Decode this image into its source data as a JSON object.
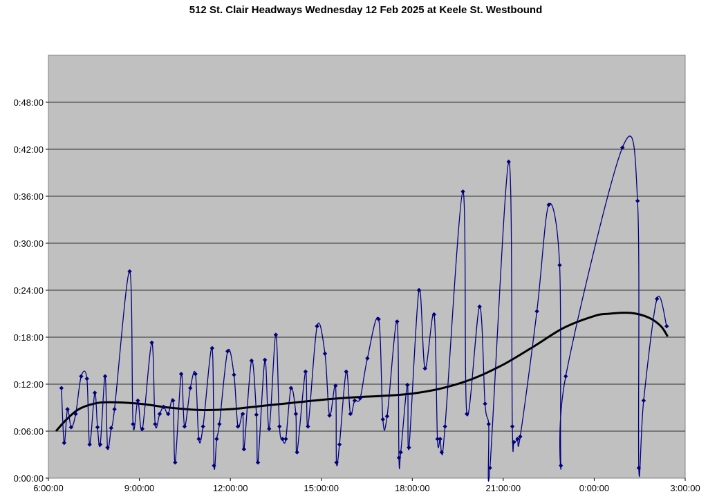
{
  "chart_data": {
    "type": "line",
    "title": "512 St. Clair Headways Wednesday 12 Feb 2025 at Keele St. Westbound",
    "xlabel": "",
    "ylabel": "",
    "x_ticks": [
      "6:00:00",
      "9:00:00",
      "12:00:00",
      "15:00:00",
      "18:00:00",
      "21:00:00",
      "0:00:00",
      "3:00:00"
    ],
    "y_ticks": [
      "0:00:00",
      "0:06:00",
      "0:12:00",
      "0:18:00",
      "0:24:00",
      "0:30:00",
      "0:36:00",
      "0:42:00",
      "0:48:00"
    ],
    "xlim_hours": [
      6,
      27
    ],
    "ylim_minutes": [
      0,
      54
    ],
    "grid": "horizontal",
    "plot_background": "#c0c0c0",
    "series": [
      {
        "kind": "headways",
        "color": "#000080",
        "points": [
          [
            6.43,
            11.5
          ],
          [
            6.52,
            4.5
          ],
          [
            6.63,
            8.8
          ],
          [
            6.75,
            6.5
          ],
          [
            6.9,
            8.2
          ],
          [
            7.08,
            13.0
          ],
          [
            7.27,
            12.7
          ],
          [
            7.36,
            4.3
          ],
          [
            7.53,
            10.9
          ],
          [
            7.62,
            6.5
          ],
          [
            7.71,
            4.3
          ],
          [
            7.87,
            13.0
          ],
          [
            7.95,
            3.9
          ],
          [
            8.07,
            6.4
          ],
          [
            8.18,
            8.8
          ],
          [
            8.68,
            26.4
          ],
          [
            8.79,
            6.9
          ],
          [
            8.95,
            9.9
          ],
          [
            9.1,
            6.3
          ],
          [
            9.41,
            17.3
          ],
          [
            9.52,
            6.9
          ],
          [
            9.67,
            8.2
          ],
          [
            9.8,
            9.1
          ],
          [
            9.95,
            8.2
          ],
          [
            10.11,
            9.9
          ],
          [
            10.18,
            2.0
          ],
          [
            10.38,
            13.3
          ],
          [
            10.49,
            6.6
          ],
          [
            10.68,
            11.5
          ],
          [
            10.85,
            13.3
          ],
          [
            10.96,
            5.0
          ],
          [
            11.1,
            6.6
          ],
          [
            11.4,
            16.6
          ],
          [
            11.46,
            1.6
          ],
          [
            11.55,
            5.0
          ],
          [
            11.64,
            6.9
          ],
          [
            11.91,
            16.2
          ],
          [
            12.12,
            13.2
          ],
          [
            12.25,
            6.6
          ],
          [
            12.41,
            8.2
          ],
          [
            12.45,
            3.7
          ],
          [
            12.7,
            15.0
          ],
          [
            12.86,
            8.1
          ],
          [
            12.91,
            2.0
          ],
          [
            13.14,
            15.1
          ],
          [
            13.28,
            6.3
          ],
          [
            13.5,
            18.3
          ],
          [
            13.62,
            6.6
          ],
          [
            13.72,
            5.0
          ],
          [
            13.83,
            5.0
          ],
          [
            14.0,
            11.5
          ],
          [
            14.16,
            8.2
          ],
          [
            14.2,
            3.3
          ],
          [
            14.48,
            13.6
          ],
          [
            14.56,
            6.6
          ],
          [
            14.86,
            19.4
          ],
          [
            15.12,
            15.9
          ],
          [
            15.27,
            8.0
          ],
          [
            15.47,
            11.8
          ],
          [
            15.5,
            2.0
          ],
          [
            15.6,
            4.3
          ],
          [
            15.82,
            13.6
          ],
          [
            15.96,
            8.2
          ],
          [
            16.1,
            9.9
          ],
          [
            16.28,
            10.2
          ],
          [
            16.52,
            15.3
          ],
          [
            16.89,
            20.3
          ],
          [
            17.03,
            7.5
          ],
          [
            17.17,
            7.9
          ],
          [
            17.5,
            20.0
          ],
          [
            17.56,
            2.6
          ],
          [
            17.62,
            3.3
          ],
          [
            17.84,
            11.9
          ],
          [
            17.89,
            3.9
          ],
          [
            18.22,
            24.0
          ],
          [
            18.42,
            14.0
          ],
          [
            18.72,
            20.9
          ],
          [
            18.83,
            5.0
          ],
          [
            18.92,
            5.0
          ],
          [
            18.97,
            3.3
          ],
          [
            19.08,
            6.6
          ],
          [
            19.67,
            36.6
          ],
          [
            19.8,
            8.2
          ],
          [
            20.22,
            21.9
          ],
          [
            20.4,
            9.5
          ],
          [
            20.52,
            6.9
          ],
          [
            20.56,
            1.3
          ],
          [
            21.18,
            40.4
          ],
          [
            21.3,
            6.6
          ],
          [
            21.35,
            4.6
          ],
          [
            21.47,
            5.0
          ],
          [
            21.56,
            5.3
          ],
          [
            22.11,
            21.3
          ],
          [
            22.5,
            34.9
          ],
          [
            22.86,
            27.2
          ],
          [
            22.9,
            1.6
          ],
          [
            23.06,
            13.0
          ],
          [
            24.93,
            42.2
          ],
          [
            25.43,
            35.4
          ],
          [
            25.47,
            1.3
          ],
          [
            25.63,
            9.9
          ],
          [
            26.07,
            22.9
          ],
          [
            26.39,
            19.4
          ]
        ]
      },
      {
        "kind": "trend",
        "color": "#000000",
        "points": [
          [
            6.25,
            6.0
          ],
          [
            6.6,
            7.5
          ],
          [
            7.0,
            8.8
          ],
          [
            7.5,
            9.5
          ],
          [
            8.0,
            9.7
          ],
          [
            9.0,
            9.5
          ],
          [
            10.0,
            9.0
          ],
          [
            11.0,
            8.7
          ],
          [
            12.0,
            8.8
          ],
          [
            13.0,
            9.2
          ],
          [
            14.0,
            9.6
          ],
          [
            15.0,
            10.0
          ],
          [
            16.0,
            10.3
          ],
          [
            17.0,
            10.5
          ],
          [
            18.0,
            10.8
          ],
          [
            19.0,
            11.5
          ],
          [
            20.0,
            12.7
          ],
          [
            21.0,
            14.5
          ],
          [
            22.0,
            16.8
          ],
          [
            23.0,
            19.2
          ],
          [
            24.0,
            20.7
          ],
          [
            24.5,
            21.0
          ],
          [
            25.2,
            21.1
          ],
          [
            25.8,
            20.5
          ],
          [
            26.2,
            19.4
          ],
          [
            26.42,
            18.1
          ]
        ]
      }
    ]
  }
}
